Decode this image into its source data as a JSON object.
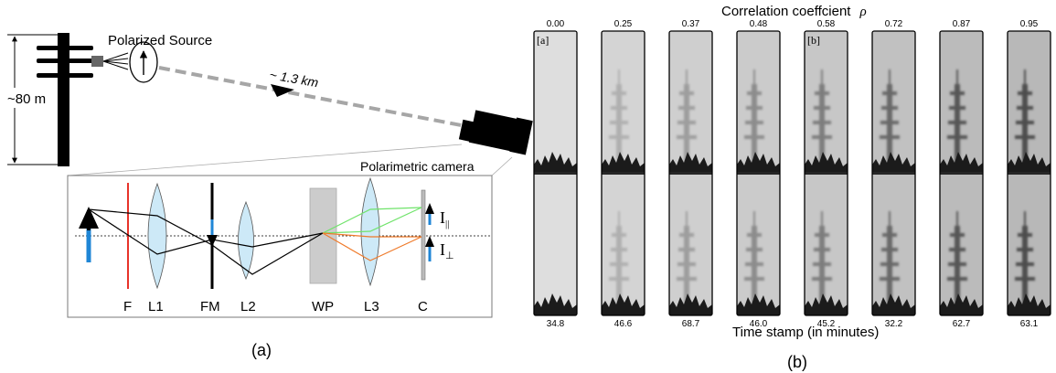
{
  "panel_a": {
    "source_label": "Polarized Source",
    "distance_label": "~ 1.3 km",
    "height_label": "~80 m",
    "camera_label": "Polarimetric camera",
    "optics_labels": [
      "F",
      "L1",
      "FM",
      "L2",
      "WP",
      "L3",
      "C"
    ],
    "i_parallel": "I",
    "i_parallel_sub": "||",
    "i_perp": "I",
    "i_perp_sub": "⊥",
    "caption": "(a)"
  },
  "panel_b": {
    "top_title": "Correlation coeffcient",
    "rho_symbol": "ρ",
    "bottom_title": "Time stamp (in minutes)",
    "correlation_values": [
      "0.00",
      "0.25",
      "0.37",
      "0.48",
      "0.58",
      "0.72",
      "0.87",
      "0.95"
    ],
    "time_values": [
      "34.8",
      "46.6",
      "68.7",
      "46.0",
      "45.2",
      "32.2",
      "62.7",
      "63.1"
    ],
    "visibility": [
      0.0,
      0.25,
      0.37,
      0.48,
      0.58,
      0.72,
      0.87,
      0.95
    ],
    "tag_a": "[a]",
    "tag_b": "[b]",
    "caption": "(b)"
  },
  "colors": {
    "lens_fill": "#cde9f7",
    "filter_red": "#e8332a",
    "blue_arrow": "#1f86d6",
    "green_ray": "#6fe36a",
    "orange_ray": "#ef7a2a",
    "beam_gray": "#a6a6a6"
  }
}
